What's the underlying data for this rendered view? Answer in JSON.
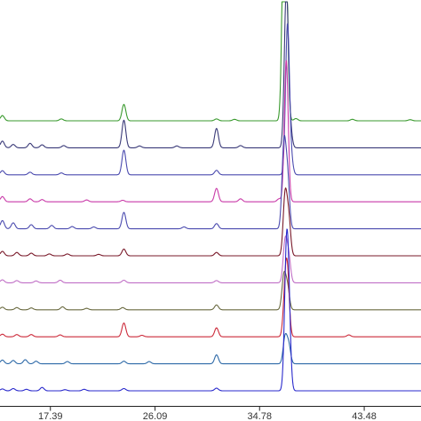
{
  "chart_data": {
    "type": "line",
    "title": "",
    "xlabel": "",
    "ylabel": "",
    "xlim": [
      13.2,
      48.2
    ],
    "x_ticks": [
      "17.39",
      "26.09",
      "34.78",
      "43.48"
    ],
    "x_tick_values": [
      17.39,
      26.09,
      34.78,
      43.48
    ],
    "grid": false,
    "legend": "none",
    "peak_shape_width": 0.16,
    "series": [
      {
        "color": "#3a9a2e",
        "peaks": [
          [
            13.4,
            14
          ],
          [
            18.3,
            5
          ],
          [
            23.5,
            44
          ],
          [
            31.2,
            5
          ],
          [
            32.7,
            4
          ],
          [
            36.8,
            450
          ],
          [
            36.95,
            430
          ],
          [
            37.8,
            6
          ],
          [
            42.5,
            4
          ],
          [
            47.3,
            3
          ]
        ]
      },
      {
        "color": "#3a3a78",
        "peaks": [
          [
            13.4,
            18
          ],
          [
            14.3,
            9
          ],
          [
            15.7,
            12
          ],
          [
            16.7,
            8
          ],
          [
            18.5,
            6
          ],
          [
            23.5,
            74
          ],
          [
            24.8,
            5
          ],
          [
            27.9,
            5
          ],
          [
            31.2,
            52
          ],
          [
            33.2,
            6
          ],
          [
            37.0,
            420
          ],
          [
            37.3,
            60
          ]
        ]
      },
      {
        "color": "#4b4baf",
        "peaks": [
          [
            13.4,
            11
          ],
          [
            15.7,
            7
          ],
          [
            18.3,
            5
          ],
          [
            23.5,
            66
          ],
          [
            31.2,
            12
          ],
          [
            37.1,
            400
          ],
          [
            37.4,
            40
          ]
        ]
      },
      {
        "color": "#c93aa8",
        "peaks": [
          [
            13.4,
            14
          ],
          [
            15.7,
            8
          ],
          [
            16.7,
            6
          ],
          [
            20.4,
            5
          ],
          [
            23.4,
            4
          ],
          [
            31.2,
            36
          ],
          [
            33.2,
            8
          ],
          [
            36.4,
            8
          ],
          [
            37.0,
            380
          ]
        ]
      },
      {
        "color": "#4b4baf",
        "peaks": [
          [
            13.4,
            22
          ],
          [
            14.3,
            16
          ],
          [
            15.8,
            11
          ],
          [
            17.5,
            9
          ],
          [
            19.2,
            6
          ],
          [
            21.0,
            5
          ],
          [
            23.5,
            44
          ],
          [
            28.5,
            5
          ],
          [
            31.2,
            14
          ],
          [
            36.8,
            220
          ],
          [
            37.1,
            140
          ]
        ]
      },
      {
        "color": "#7a1a2a",
        "peaks": [
          [
            13.4,
            12
          ],
          [
            14.6,
            9
          ],
          [
            15.8,
            7
          ],
          [
            17.3,
            5
          ],
          [
            18.8,
            5
          ],
          [
            21.4,
            4
          ],
          [
            23.5,
            18
          ],
          [
            31.2,
            9
          ],
          [
            36.9,
            160
          ],
          [
            37.2,
            100
          ]
        ]
      },
      {
        "color": "#c06fc6",
        "peaks": [
          [
            13.4,
            8
          ],
          [
            14.6,
            6
          ],
          [
            16.2,
            5
          ],
          [
            18.2,
            7
          ],
          [
            23.5,
            7
          ],
          [
            31.2,
            6
          ],
          [
            36.9,
            110
          ],
          [
            37.2,
            70
          ]
        ]
      },
      {
        "color": "#6a6a40",
        "peaks": [
          [
            13.4,
            7
          ],
          [
            14.6,
            6
          ],
          [
            15.8,
            5
          ],
          [
            18.4,
            8
          ],
          [
            20.4,
            4
          ],
          [
            23.4,
            6
          ],
          [
            31.2,
            13
          ],
          [
            36.8,
            90
          ],
          [
            37.1,
            60
          ]
        ]
      },
      {
        "color": "#cc2a3a",
        "peaks": [
          [
            13.4,
            7
          ],
          [
            14.6,
            6
          ],
          [
            15.8,
            6
          ],
          [
            18.2,
            5
          ],
          [
            23.5,
            37
          ],
          [
            25.0,
            4
          ],
          [
            31.2,
            24
          ],
          [
            36.9,
            105
          ],
          [
            37.1,
            150
          ],
          [
            42.2,
            5
          ]
        ]
      },
      {
        "color": "#2e6aa8",
        "peaks": [
          [
            13.4,
            10
          ],
          [
            14.3,
            9
          ],
          [
            15.3,
            11
          ],
          [
            16.2,
            7
          ],
          [
            18.8,
            6
          ],
          [
            23.5,
            7
          ],
          [
            25.6,
            6
          ],
          [
            31.2,
            24
          ],
          [
            36.9,
            70
          ],
          [
            37.2,
            50
          ]
        ]
      },
      {
        "color": "#2a2acc",
        "peaks": [
          [
            13.4,
            5
          ],
          [
            14.3,
            6
          ],
          [
            15.4,
            4
          ],
          [
            16.7,
            9
          ],
          [
            18.6,
            3
          ],
          [
            20.2,
            4
          ],
          [
            23.5,
            6
          ],
          [
            31.2,
            7
          ],
          [
            37.0,
            320
          ],
          [
            37.2,
            200
          ]
        ]
      }
    ]
  }
}
